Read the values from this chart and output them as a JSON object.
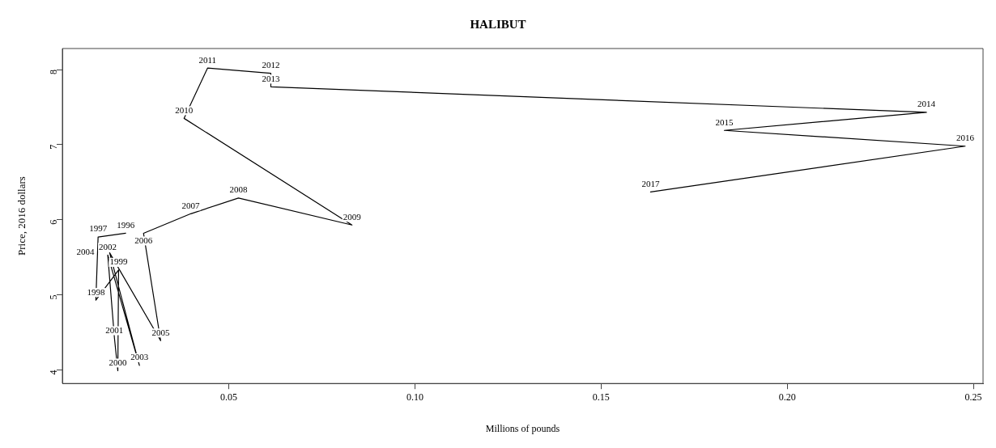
{
  "chart_data": {
    "type": "line",
    "title": "HALIBUT",
    "xlabel": "Millions of pounds",
    "ylabel": "Price, 2016 dollars",
    "x": [
      0.0223,
      0.0149,
      0.0143,
      0.0204,
      0.0202,
      0.0193,
      0.0175,
      0.026,
      0.018,
      0.0317,
      0.0271,
      0.0398,
      0.0526,
      0.0831,
      0.038,
      0.0443,
      0.0613,
      0.0613,
      0.2374,
      0.1831,
      0.2478,
      0.1633
    ],
    "values": [
      5.82,
      5.77,
      4.93,
      5.33,
      3.99,
      4.42,
      5.53,
      4.06,
      5.56,
      4.39,
      5.82,
      6.08,
      6.29,
      5.93,
      7.35,
      8.02,
      7.95,
      7.77,
      7.43,
      7.19,
      6.98,
      6.37
    ],
    "color": "#000000",
    "marker": "none",
    "line_style": "solid",
    "grid": false,
    "legend": false,
    "xlim": [
      0.0053,
      0.2526
    ],
    "ylim": [
      3.82,
      8.28
    ],
    "xticks": [
      {
        "value": 0.05,
        "label": "0.05"
      },
      {
        "value": 0.1,
        "label": "0.10"
      },
      {
        "value": 0.15,
        "label": "0.15"
      },
      {
        "value": 0.2,
        "label": "0.20"
      },
      {
        "value": 0.25,
        "label": "0.25"
      }
    ],
    "yticks": [
      4,
      5,
      6,
      7,
      8
    ],
    "annotations": [
      {
        "text": "1996",
        "x": 0.0223,
        "y": 5.82
      },
      {
        "text": "1997",
        "x": 0.0149,
        "y": 5.77
      },
      {
        "text": "1998",
        "x": 0.0143,
        "y": 4.93
      },
      {
        "text": "1999",
        "x": 0.0204,
        "y": 5.33
      },
      {
        "text": "2000",
        "x": 0.0202,
        "y": 3.99
      },
      {
        "text": "2001",
        "x": 0.0193,
        "y": 4.42
      },
      {
        "text": "2002",
        "x": 0.0175,
        "y": 5.53
      },
      {
        "text": "2003",
        "x": 0.026,
        "y": 4.06
      },
      {
        "text": "2004",
        "x": 0.018,
        "y": 5.56
      },
      {
        "text": "2005",
        "x": 0.0317,
        "y": 4.39
      },
      {
        "text": "2006",
        "x": 0.0271,
        "y": 5.82
      },
      {
        "text": "2007",
        "x": 0.0398,
        "y": 6.08
      },
      {
        "text": "2008",
        "x": 0.0526,
        "y": 6.29
      },
      {
        "text": "2009",
        "x": 0.0831,
        "y": 5.93
      },
      {
        "text": "2010",
        "x": 0.038,
        "y": 7.35
      },
      {
        "text": "2011",
        "x": 0.0443,
        "y": 8.02
      },
      {
        "text": "2012",
        "x": 0.0613,
        "y": 7.95
      },
      {
        "text": "2013",
        "x": 0.0613,
        "y": 7.77
      },
      {
        "text": "2014",
        "x": 0.2374,
        "y": 7.43
      },
      {
        "text": "2015",
        "x": 0.1831,
        "y": 7.19
      },
      {
        "text": "2016",
        "x": 0.2478,
        "y": 6.98
      },
      {
        "text": "2017",
        "x": 0.1633,
        "y": 6.37
      }
    ]
  }
}
